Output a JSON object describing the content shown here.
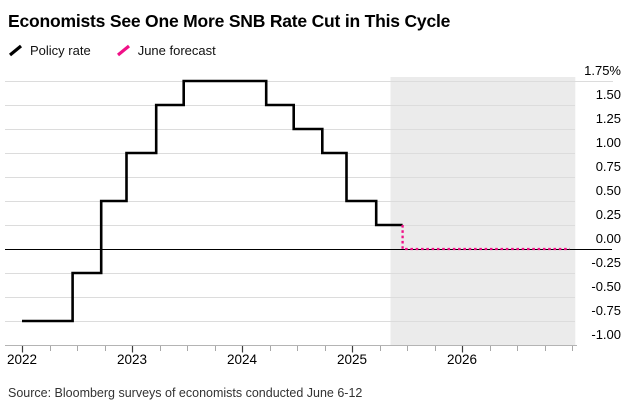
{
  "title": "Economists See One More SNB Rate Cut in This Cycle",
  "source": "Source: Bloomberg surveys of economists conducted June 6-12",
  "legend": [
    {
      "label": "Policy rate",
      "color": "#000000",
      "style": "solid"
    },
    {
      "label": "June forecast",
      "color": "#f01087",
      "style": "dashed"
    }
  ],
  "chart_data": {
    "type": "line",
    "subtype": "step",
    "title": "Economists See One More SNB Rate Cut in This Cycle",
    "ylabel": "%",
    "ylim": [
      -1.0,
      1.75
    ],
    "xlim": [
      2021.85,
      2027.05
    ],
    "grid": "horizontal",
    "legend_position": "top-left",
    "yticks": [
      {
        "value": 1.75,
        "label": "1.75%"
      },
      {
        "value": 1.5,
        "label": "1.50"
      },
      {
        "value": 1.25,
        "label": "1.25"
      },
      {
        "value": 1.0,
        "label": "1.00"
      },
      {
        "value": 0.75,
        "label": "0.75"
      },
      {
        "value": 0.5,
        "label": "0.50"
      },
      {
        "value": 0.25,
        "label": "0.25"
      },
      {
        "value": 0.0,
        "label": "0.00"
      },
      {
        "value": -0.25,
        "label": "-0.25"
      },
      {
        "value": -0.5,
        "label": "-0.50"
      },
      {
        "value": -0.75,
        "label": "-0.75"
      },
      {
        "value": -1.0,
        "label": "-1.00"
      }
    ],
    "xticks": [
      2022,
      2023,
      2024,
      2025,
      2026
    ],
    "xticks_minor": [
      2022.25,
      2022.5,
      2022.75,
      2023.25,
      2023.5,
      2023.75,
      2024.25,
      2024.5,
      2024.75,
      2025.25,
      2025.5,
      2025.75,
      2026.25,
      2026.5,
      2026.75,
      2027
    ],
    "zero_line": true,
    "series": [
      {
        "name": "Policy rate",
        "color": "#000000",
        "style": "solid",
        "steps": [
          [
            2022.0,
            -0.75
          ],
          [
            2022.46,
            -0.25
          ],
          [
            2022.72,
            0.5
          ],
          [
            2022.95,
            1.0
          ],
          [
            2023.22,
            1.5
          ],
          [
            2023.47,
            1.75
          ],
          [
            2024.22,
            1.5
          ],
          [
            2024.47,
            1.25
          ],
          [
            2024.73,
            1.0
          ],
          [
            2024.95,
            0.5
          ],
          [
            2025.22,
            0.25
          ]
        ],
        "end_x": 2025.46
      },
      {
        "name": "June forecast",
        "color": "#f01087",
        "style": "dashed",
        "connector_from": 0.25,
        "steps": [
          [
            2025.46,
            0.0
          ]
        ],
        "end_x": 2026.98
      }
    ],
    "forecast_region": {
      "x_start": 2025.35,
      "x_end": 2027.03,
      "fill": "#ebebeb"
    }
  }
}
